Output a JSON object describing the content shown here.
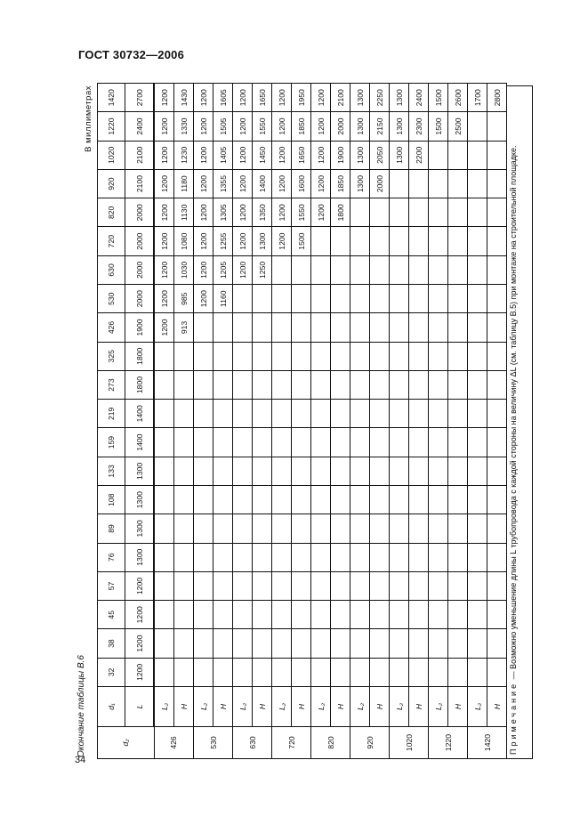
{
  "header": {
    "title": "ГОСТ 30732—2006"
  },
  "page_number": "34",
  "caption": "Окончание таблицы В.6",
  "units": "В миллиметрах",
  "table": {
    "d2_label": "d₂",
    "d1_label": "d₁",
    "L_label": "L",
    "L2_label": "L₂",
    "H_label": "H",
    "d1": [
      "32",
      "38",
      "45",
      "57",
      "76",
      "89",
      "108",
      "133",
      "159",
      "219",
      "273",
      "325",
      "426",
      "530",
      "630",
      "720",
      "820",
      "920",
      "1020",
      "1220",
      "1420"
    ],
    "L": [
      "1200",
      "1200",
      "1200",
      "1200",
      "1300",
      "1300",
      "1300",
      "1300",
      "1400",
      "1400",
      "1800",
      "1800",
      "1900",
      "2000",
      "2000",
      "2000",
      "2000",
      "2100",
      "2100",
      "2400",
      "2700"
    ],
    "rows": [
      {
        "d2": "426",
        "L2": [
          "",
          "",
          "",
          "",
          "",
          "",
          "",
          "",
          "",
          "",
          "",
          "",
          "1200",
          "1200",
          "1200",
          "1200",
          "1200",
          "1200",
          "1200",
          "1200",
          "1200"
        ],
        "H": [
          "",
          "",
          "",
          "",
          "",
          "",
          "",
          "",
          "",
          "",
          "",
          "",
          "913",
          "985",
          "1030",
          "1080",
          "1130",
          "1180",
          "1230",
          "1330",
          "1430"
        ]
      },
      {
        "d2": "530",
        "L2": [
          "",
          "",
          "",
          "",
          "",
          "",
          "",
          "",
          "",
          "",
          "",
          "",
          "",
          "1200",
          "1200",
          "1200",
          "1200",
          "1200",
          "1200",
          "1200",
          "1200"
        ],
        "H": [
          "",
          "",
          "",
          "",
          "",
          "",
          "",
          "",
          "",
          "",
          "",
          "",
          "",
          "1160",
          "1205",
          "1255",
          "1305",
          "1355",
          "1405",
          "1505",
          "1605"
        ]
      },
      {
        "d2": "630",
        "L2": [
          "",
          "",
          "",
          "",
          "",
          "",
          "",
          "",
          "",
          "",
          "",
          "",
          "",
          "",
          "1200",
          "1200",
          "1200",
          "1200",
          "1200",
          "1200",
          "1200"
        ],
        "H": [
          "",
          "",
          "",
          "",
          "",
          "",
          "",
          "",
          "",
          "",
          "",
          "",
          "",
          "",
          "1250",
          "1300",
          "1350",
          "1400",
          "1450",
          "1550",
          "1650"
        ]
      },
      {
        "d2": "720",
        "L2": [
          "",
          "",
          "",
          "",
          "",
          "",
          "",
          "",
          "",
          "",
          "",
          "",
          "",
          "",
          "",
          "1200",
          "1200",
          "1200",
          "1200",
          "1200",
          "1200"
        ],
        "H": [
          "",
          "",
          "",
          "",
          "",
          "",
          "",
          "",
          "",
          "",
          "",
          "",
          "",
          "",
          "",
          "1500",
          "1550",
          "1600",
          "1650",
          "1850",
          "1950"
        ]
      },
      {
        "d2": "820",
        "L2": [
          "",
          "",
          "",
          "",
          "",
          "",
          "",
          "",
          "",
          "",
          "",
          "",
          "",
          "",
          "",
          "",
          "1200",
          "1200",
          "1200",
          "1200",
          "1200"
        ],
        "H": [
          "",
          "",
          "",
          "",
          "",
          "",
          "",
          "",
          "",
          "",
          "",
          "",
          "",
          "",
          "",
          "",
          "1800",
          "1850",
          "1900",
          "2000",
          "2100"
        ]
      },
      {
        "d2": "920",
        "L2": [
          "",
          "",
          "",
          "",
          "",
          "",
          "",
          "",
          "",
          "",
          "",
          "",
          "",
          "",
          "",
          "",
          "",
          "1300",
          "1300",
          "1300",
          "1300"
        ],
        "H": [
          "",
          "",
          "",
          "",
          "",
          "",
          "",
          "",
          "",
          "",
          "",
          "",
          "",
          "",
          "",
          "",
          "",
          "2000",
          "2050",
          "2150",
          "2250"
        ]
      },
      {
        "d2": "1020",
        "L2": [
          "",
          "",
          "",
          "",
          "",
          "",
          "",
          "",
          "",
          "",
          "",
          "",
          "",
          "",
          "",
          "",
          "",
          "",
          "1300",
          "1300",
          "1300"
        ],
        "H": [
          "",
          "",
          "",
          "",
          "",
          "",
          "",
          "",
          "",
          "",
          "",
          "",
          "",
          "",
          "",
          "",
          "",
          "",
          "2200",
          "2300",
          "2400"
        ]
      },
      {
        "d2": "1220",
        "L2": [
          "",
          "",
          "",
          "",
          "",
          "",
          "",
          "",
          "",
          "",
          "",
          "",
          "",
          "",
          "",
          "",
          "",
          "",
          "",
          "1500",
          "1500"
        ],
        "H": [
          "",
          "",
          "",
          "",
          "",
          "",
          "",
          "",
          "",
          "",
          "",
          "",
          "",
          "",
          "",
          "",
          "",
          "",
          "",
          "2500",
          "2600"
        ]
      },
      {
        "d2": "1420",
        "L2": [
          "",
          "",
          "",
          "",
          "",
          "",
          "",
          "",
          "",
          "",
          "",
          "",
          "",
          "",
          "",
          "",
          "",
          "",
          "",
          "",
          "1700"
        ],
        "H": [
          "",
          "",
          "",
          "",
          "",
          "",
          "",
          "",
          "",
          "",
          "",
          "",
          "",
          "",
          "",
          "",
          "",
          "",
          "",
          "",
          "2800"
        ]
      }
    ]
  },
  "note": {
    "prefix": "Примечание",
    "text": " — Возможно уменьшение длины L трубопровода с каждой стороны на величину ΔL (см. таблицу В.5) при монтаже на строительной площадке."
  }
}
